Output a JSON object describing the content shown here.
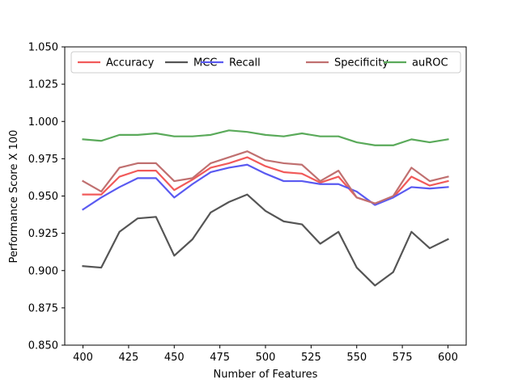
{
  "chart_data": {
    "type": "line",
    "title": "",
    "xlabel": "Number of Features",
    "ylabel": "Performance Score X 100",
    "xlim": [
      390,
      610
    ],
    "ylim": [
      0.85,
      1.05
    ],
    "xticks": [
      400,
      425,
      450,
      475,
      500,
      525,
      550,
      575,
      600
    ],
    "xtick_labels": [
      "400",
      "425",
      "450",
      "475",
      "500",
      "525",
      "550",
      "575",
      "600"
    ],
    "yticks": [
      0.85,
      0.875,
      0.9,
      0.925,
      0.95,
      0.975,
      1.0,
      1.025,
      1.05
    ],
    "ytick_labels": [
      "0.850",
      "0.875",
      "0.900",
      "0.925",
      "0.950",
      "0.975",
      "1.000",
      "1.025",
      "1.050"
    ],
    "grid": false,
    "legend_position": "top",
    "x": [
      400,
      410,
      420,
      430,
      440,
      450,
      460,
      470,
      480,
      490,
      500,
      510,
      520,
      530,
      540,
      550,
      560,
      570,
      580,
      590,
      600
    ],
    "series": [
      {
        "name": "Accuracy",
        "color": "#f15a5a",
        "values": [
          0.951,
          0.951,
          0.963,
          0.967,
          0.967,
          0.954,
          0.961,
          0.969,
          0.972,
          0.976,
          0.97,
          0.966,
          0.965,
          0.959,
          0.963,
          0.949,
          0.945,
          0.949,
          0.963,
          0.957,
          0.96
        ]
      },
      {
        "name": "MCC",
        "color": "#555555",
        "values": [
          0.903,
          0.902,
          0.926,
          0.935,
          0.936,
          0.91,
          0.921,
          0.939,
          0.946,
          0.951,
          0.94,
          0.933,
          0.931,
          0.918,
          0.926,
          0.902,
          0.89,
          0.899,
          0.926,
          0.915,
          0.921
        ]
      },
      {
        "name": "Recall",
        "color": "#5a5af1",
        "values": [
          0.941,
          0.949,
          0.956,
          0.962,
          0.962,
          0.949,
          0.958,
          0.966,
          0.969,
          0.971,
          0.965,
          0.96,
          0.96,
          0.958,
          0.958,
          0.953,
          0.944,
          0.949,
          0.956,
          0.955,
          0.956
        ]
      },
      {
        "name": "Specificity",
        "color": "#c07070",
        "values": [
          0.96,
          0.953,
          0.969,
          0.972,
          0.972,
          0.96,
          0.962,
          0.972,
          0.976,
          0.98,
          0.974,
          0.972,
          0.971,
          0.96,
          0.967,
          0.949,
          0.945,
          0.95,
          0.969,
          0.96,
          0.963
        ]
      },
      {
        "name": "auROC",
        "color": "#5aaa5a",
        "values": [
          0.988,
          0.987,
          0.991,
          0.991,
          0.992,
          0.99,
          0.99,
          0.991,
          0.994,
          0.993,
          0.991,
          0.99,
          0.992,
          0.99,
          0.99,
          0.986,
          0.984,
          0.984,
          0.988,
          0.986,
          0.988
        ]
      }
    ]
  }
}
